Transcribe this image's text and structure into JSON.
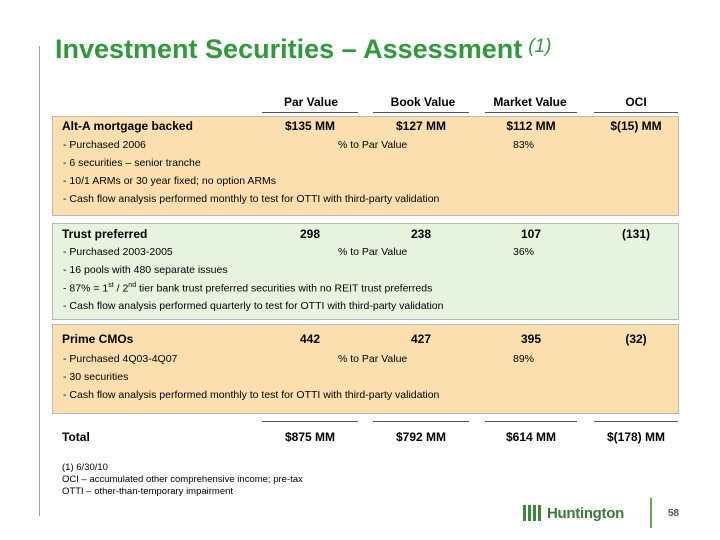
{
  "title": "Investment Securities – Assessment",
  "title_note": "(1)",
  "columns": [
    "Par Value",
    "Book  Value",
    "Market Value",
    "OCI"
  ],
  "groups": [
    {
      "name": "Alt-A mortgage backed",
      "par": "$135 MM",
      "book": "$127 MM",
      "market": "$112 MM",
      "oci": "$(15) MM",
      "bullets": [
        "- Purchased 2006",
        "- 6 securities – senior tranche",
        "- 10/1 ARMs or 30 year fixed; no option ARMs",
        "- Cash flow analysis performed monthly to test for OTTI  with third-party validation"
      ],
      "pct_label": "% to Par Value",
      "pct_value": "83%"
    },
    {
      "name": "Trust preferred",
      "par": "298",
      "book": "238",
      "market": "107",
      "oci": "(131)",
      "bullets": [
        "- Purchased 2003-2005",
        "- 16 pools with 480 separate issues",
        "- 87% = 1st / 2nd tier bank trust preferred securities with no REIT trust preferreds",
        "- Cash flow analysis performed quarterly to test for OTTI  with third-party validation"
      ],
      "bullet_3_parts": {
        "prefix": "- 87% = 1",
        "sup1": "st",
        "mid": " / 2",
        "sup2": "nd",
        "suffix": " tier bank trust preferred securities with no REIT trust preferreds"
      },
      "pct_label": "% to Par Value",
      "pct_value": "36%"
    },
    {
      "name": "Prime CMOs",
      "par": "442",
      "book": "427",
      "market": "395",
      "oci": "(32)",
      "bullets": [
        "- Purchased 4Q03-4Q07",
        "- 30 securities",
        "- Cash flow analysis performed monthly to test for OTTI  with third-party validation"
      ],
      "pct_label": "% to Par Value",
      "pct_value": "89%"
    }
  ],
  "total": {
    "label": "Total",
    "par": "$875 MM",
    "book": "$792 MM",
    "market": "$614 MM",
    "oci": "$(178) MM"
  },
  "footnotes": [
    "(1)  6/30/10",
    "OCI – accumulated other comprehensive income; pre-tax",
    "OTTI – other-than-temporary impairment"
  ],
  "logo_text": "Huntington",
  "page_number": "58",
  "colors": {
    "title": "#2e9a3a",
    "tan_box": "#fcdfae",
    "green_box": "#e6f3df"
  }
}
